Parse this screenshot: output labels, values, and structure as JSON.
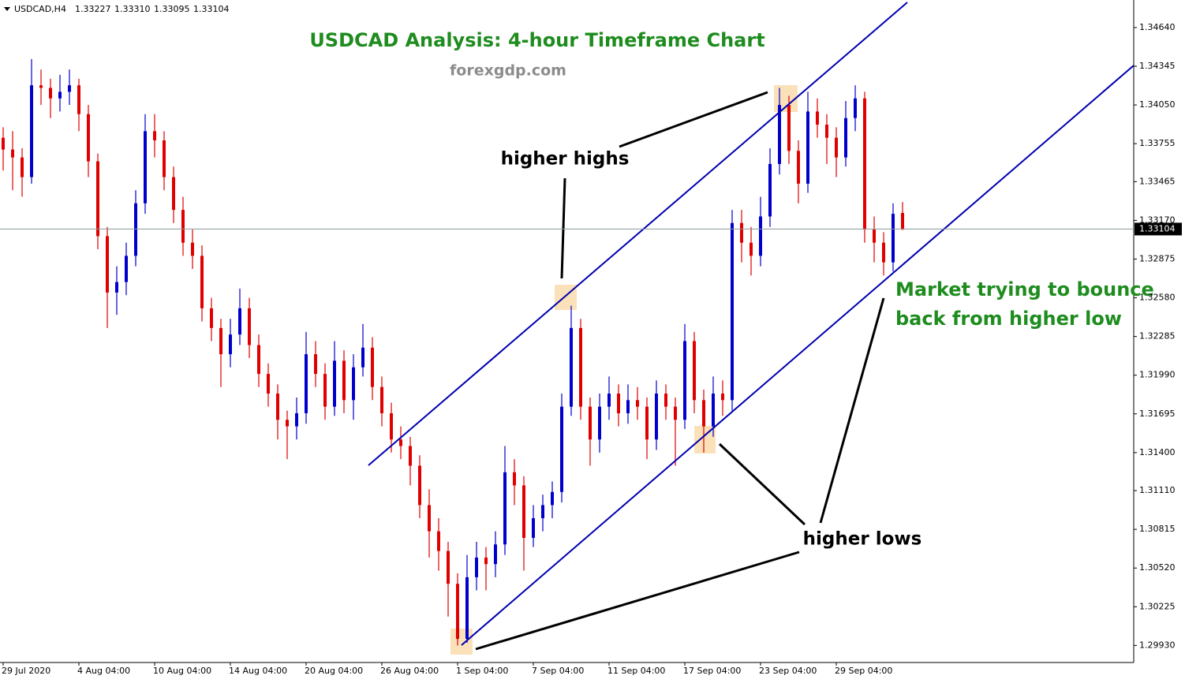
{
  "chart_data": {
    "type": "candlestick",
    "header": {
      "symbol": "USDCAD,H4",
      "values": [
        "1.33227",
        "1.33310",
        "1.33095",
        "1.33104"
      ]
    },
    "title": "USDCAD Analysis: 4-hour Timeframe Chart",
    "subtitle": "forexgdp.com",
    "annotations": {
      "higher_highs": "higher highs",
      "higher_lows": "higher lows",
      "bounce": [
        "Market trying to bounce",
        "back from higher low"
      ]
    },
    "up_color": "#0000cd",
    "down_color": "#e00000",
    "categories": [
      "29 Jul 2020",
      null,
      null,
      null,
      null,
      null,
      null,
      null,
      "4 Aug 04:00",
      null,
      null,
      null,
      null,
      null,
      null,
      null,
      "10 Aug 04:00",
      null,
      null,
      null,
      null,
      null,
      null,
      null,
      "14 Aug 04:00",
      null,
      null,
      null,
      null,
      null,
      null,
      null,
      "20 Aug 04:00",
      null,
      null,
      null,
      null,
      null,
      null,
      null,
      "26 Aug 04:00",
      null,
      null,
      null,
      null,
      null,
      null,
      null,
      "1 Sep 04:00",
      null,
      null,
      null,
      null,
      null,
      null,
      null,
      "7 Sep 04:00",
      null,
      null,
      null,
      null,
      null,
      null,
      null,
      "11 Sep 04:00",
      null,
      null,
      null,
      null,
      null,
      null,
      null,
      "17 Sep 04:00",
      null,
      null,
      null,
      null,
      null,
      null,
      null,
      "23 Sep 04:00",
      null,
      null,
      null,
      null,
      null,
      null,
      null,
      "29 Sep 04:00",
      null,
      null,
      null,
      null,
      null,
      null,
      null
    ],
    "open": [
      1.338,
      1.3371,
      1.3365,
      1.335,
      1.342,
      1.3418,
      1.341,
      1.3415,
      1.342,
      1.3398,
      1.3362,
      1.3305,
      1.3262,
      1.327,
      1.329,
      1.333,
      1.3385,
      1.3378,
      1.335,
      1.3325,
      1.33,
      1.329,
      1.325,
      1.3235,
      1.3215,
      1.323,
      1.325,
      1.3222,
      1.32,
      1.3185,
      1.3165,
      1.316,
      1.317,
      1.3215,
      1.32,
      1.3175,
      1.321,
      1.318,
      1.3205,
      1.322,
      1.319,
      1.317,
      1.315,
      1.3145,
      1.313,
      1.31,
      1.308,
      1.3065,
      1.304,
      1.2998,
      1.3045,
      1.306,
      1.3055,
      1.307,
      1.3125,
      1.3115,
      1.3075,
      1.309,
      1.31,
      1.311,
      1.3175,
      1.3235,
      1.3175,
      1.315,
      1.3175,
      1.3185,
      1.317,
      1.318,
      1.3175,
      1.315,
      1.3185,
      1.3175,
      1.3165,
      1.3225,
      1.318,
      1.316,
      1.3185,
      1.318,
      1.3315,
      1.33,
      1.329,
      1.332,
      1.336,
      1.3405,
      1.337,
      1.3345,
      1.34,
      1.339,
      1.338,
      1.3365,
      1.3395,
      1.341,
      1.331,
      1.33,
      1.3285,
      1.33227
    ],
    "high": [
      1.3388,
      1.3385,
      1.3372,
      1.344,
      1.3432,
      1.3425,
      1.3428,
      1.3432,
      1.3425,
      1.3405,
      1.3368,
      1.3312,
      1.3282,
      1.33,
      1.334,
      1.3398,
      1.3398,
      1.3385,
      1.3358,
      1.3335,
      1.331,
      1.3298,
      1.3258,
      1.3242,
      1.3242,
      1.3265,
      1.3258,
      1.323,
      1.3208,
      1.3192,
      1.3172,
      1.3182,
      1.3232,
      1.3225,
      1.3208,
      1.3225,
      1.3218,
      1.3215,
      1.3238,
      1.3228,
      1.3198,
      1.3178,
      1.316,
      1.3152,
      1.3138,
      1.3112,
      1.309,
      1.3072,
      1.3048,
      1.3062,
      1.3072,
      1.3068,
      1.308,
      1.3145,
      1.3135,
      1.3122,
      1.31,
      1.3108,
      1.3118,
      1.3185,
      1.3252,
      1.3242,
      1.3182,
      1.3185,
      1.3198,
      1.3192,
      1.3192,
      1.319,
      1.3182,
      1.3195,
      1.3192,
      1.3182,
      1.3238,
      1.3232,
      1.3188,
      1.3198,
      1.3195,
      1.3325,
      1.3325,
      1.3312,
      1.3335,
      1.3372,
      1.3418,
      1.3412,
      1.3378,
      1.3415,
      1.341,
      1.3398,
      1.3388,
      1.3408,
      1.342,
      1.3415,
      1.332,
      1.3308,
      1.333,
      1.3331
    ],
    "low": [
      1.3355,
      1.334,
      1.3335,
      1.3345,
      1.3405,
      1.3395,
      1.34,
      1.3405,
      1.3385,
      1.335,
      1.3295,
      1.3235,
      1.3245,
      1.326,
      1.3282,
      1.3322,
      1.3365,
      1.334,
      1.3315,
      1.329,
      1.328,
      1.324,
      1.3225,
      1.319,
      1.3205,
      1.3222,
      1.3212,
      1.319,
      1.3175,
      1.315,
      1.3135,
      1.315,
      1.3162,
      1.319,
      1.3165,
      1.3168,
      1.317,
      1.3165,
      1.3198,
      1.318,
      1.316,
      1.314,
      1.3135,
      1.3115,
      1.309,
      1.306,
      1.305,
      1.3015,
      1.2993,
      1.2995,
      1.3035,
      1.3035,
      1.3045,
      1.3062,
      1.31,
      1.305,
      1.3068,
      1.308,
      1.309,
      1.3102,
      1.3168,
      1.3165,
      1.313,
      1.314,
      1.3165,
      1.316,
      1.3162,
      1.3165,
      1.3135,
      1.3142,
      1.3165,
      1.313,
      1.3158,
      1.317,
      1.314,
      1.3152,
      1.3168,
      1.3172,
      1.3285,
      1.3275,
      1.3282,
      1.3312,
      1.3352,
      1.336,
      1.333,
      1.3338,
      1.338,
      1.336,
      1.335,
      1.3358,
      1.3385,
      1.33,
      1.3285,
      1.3275,
      1.3278,
      1.33095
    ],
    "close": [
      1.3371,
      1.3365,
      1.335,
      1.342,
      1.3418,
      1.341,
      1.3415,
      1.342,
      1.3398,
      1.3362,
      1.3305,
      1.3262,
      1.327,
      1.329,
      1.333,
      1.3385,
      1.3378,
      1.335,
      1.3325,
      1.33,
      1.329,
      1.325,
      1.3235,
      1.3215,
      1.323,
      1.325,
      1.3222,
      1.32,
      1.3185,
      1.3165,
      1.316,
      1.317,
      1.3215,
      1.32,
      1.3175,
      1.321,
      1.318,
      1.3205,
      1.322,
      1.319,
      1.317,
      1.315,
      1.3145,
      1.313,
      1.31,
      1.308,
      1.3065,
      1.304,
      1.2998,
      1.3045,
      1.306,
      1.3055,
      1.307,
      1.3125,
      1.3115,
      1.3075,
      1.309,
      1.31,
      1.311,
      1.3175,
      1.3235,
      1.3175,
      1.315,
      1.3175,
      1.3185,
      1.317,
      1.318,
      1.3175,
      1.315,
      1.3185,
      1.3175,
      1.3165,
      1.3225,
      1.318,
      1.316,
      1.3185,
      1.318,
      1.3315,
      1.33,
      1.329,
      1.332,
      1.336,
      1.3405,
      1.337,
      1.3345,
      1.34,
      1.339,
      1.338,
      1.3365,
      1.3395,
      1.341,
      1.331,
      1.33,
      1.3285,
      1.3322,
      1.33104
    ],
    "last_price": {
      "value": 1.33104,
      "label": "1.33104"
    },
    "ylim": [
      1.298,
      1.3485
    ],
    "yticks": [
      {
        "value": 1.2993,
        "label": "1.29930"
      },
      {
        "value": 1.30225,
        "label": "1.30225"
      },
      {
        "value": 1.3052,
        "label": "1.30520"
      },
      {
        "value": 1.30815,
        "label": "1.30815"
      },
      {
        "value": 1.3111,
        "label": "1.31110"
      },
      {
        "value": 1.314,
        "label": "1.31400"
      },
      {
        "value": 1.31695,
        "label": "1.31695"
      },
      {
        "value": 1.3199,
        "label": "1.31990"
      },
      {
        "value": 1.32285,
        "label": "1.32285"
      },
      {
        "value": 1.3258,
        "label": "1.32580"
      },
      {
        "value": 1.32875,
        "label": "1.32875"
      },
      {
        "value": 1.3317,
        "label": "1.33170"
      },
      {
        "value": 1.33465,
        "label": "1.33465"
      },
      {
        "value": 1.33755,
        "label": "1.33755"
      },
      {
        "value": 1.3405,
        "label": "1.34050"
      },
      {
        "value": 1.34345,
        "label": "1.34345"
      },
      {
        "value": 1.3464,
        "label": "1.34640"
      }
    ]
  }
}
